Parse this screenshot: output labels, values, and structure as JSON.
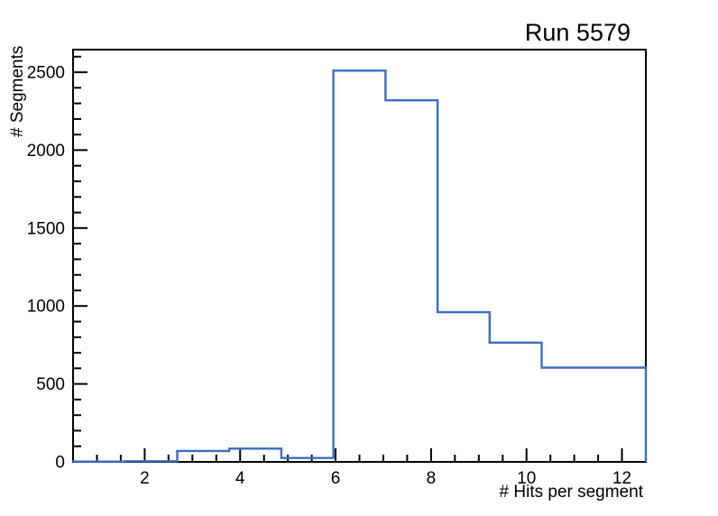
{
  "chart_data": {
    "type": "bar",
    "style": "step-histogram",
    "title": "Run 5579",
    "xlabel": "# Hits per segment",
    "ylabel": "# Segments",
    "xlim": [
      0.5,
      12.5
    ],
    "ylim": [
      0,
      2645
    ],
    "bin_edges": [
      0.5,
      1.5909,
      2.6818,
      3.7727,
      4.8636,
      5.9545,
      7.0455,
      8.1364,
      9.2273,
      10.3182,
      11.4091,
      12.5
    ],
    "values": [
      2,
      4,
      70,
      85,
      25,
      2510,
      2320,
      960,
      765,
      605,
      605
    ],
    "x_major_ticks": [
      2,
      4,
      6,
      8,
      10,
      12
    ],
    "x_minor_step": 0.5,
    "y_major_ticks": [
      0,
      500,
      1000,
      1500,
      2000,
      2500
    ],
    "y_minor_step": 100,
    "grid": false,
    "legend": null,
    "line_color": "#3b6cc5",
    "axis_color": "#000000",
    "background_color": "#ffffff"
  }
}
